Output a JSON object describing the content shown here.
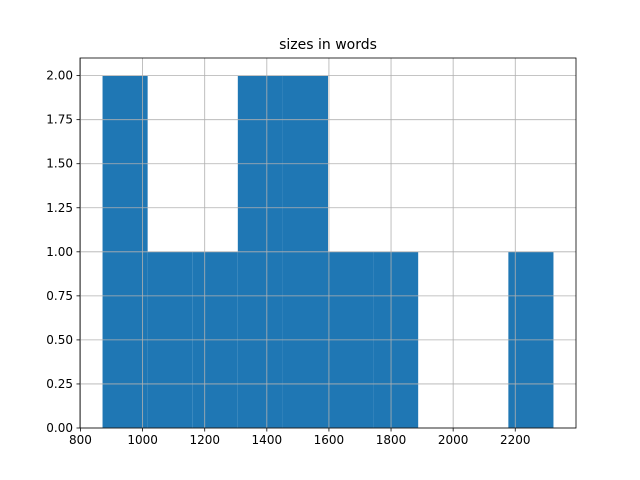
{
  "chart_data": {
    "type": "histogram",
    "title": "sizes in words",
    "bins": [
      871,
      1016.2,
      1161.4,
      1306.6,
      1451.8,
      1597,
      1742.2,
      1887.4,
      2032.6,
      2177.8,
      2323
    ],
    "values": [
      2,
      1,
      1,
      2,
      2,
      1,
      1,
      0,
      0,
      1
    ],
    "color": "#1f77b4",
    "xlim": [
      798.4,
      2395.6
    ],
    "xticks": [
      800,
      1000,
      1200,
      1400,
      1600,
      1800,
      2000,
      2200
    ],
    "ylim": [
      0,
      2.1
    ],
    "yticks": [
      {
        "value": 0,
        "label": "0.00"
      },
      {
        "value": 0.25,
        "label": "0.25"
      },
      {
        "value": 0.5,
        "label": "0.50"
      },
      {
        "value": 0.75,
        "label": "0.75"
      },
      {
        "value": 1,
        "label": "1.00"
      },
      {
        "value": 1.25,
        "label": "1.25"
      },
      {
        "value": 1.5,
        "label": "1.50"
      },
      {
        "value": 1.75,
        "label": "1.75"
      },
      {
        "value": 2,
        "label": "2.00"
      }
    ],
    "grid": true
  }
}
